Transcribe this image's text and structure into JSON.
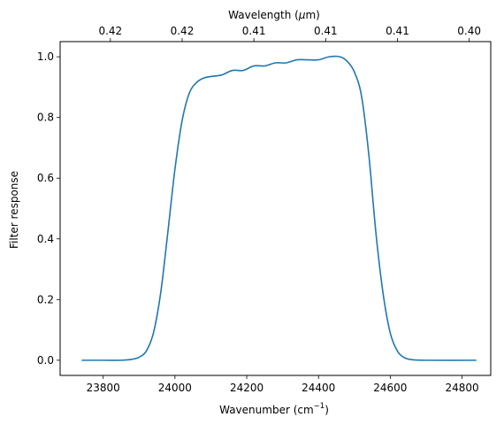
{
  "chart_data": {
    "type": "line",
    "xlabel": "Wavenumber (cm",
    "xlabel_sup": "−1",
    "xlabel_end": ")",
    "ylabel": "Filter response",
    "top_xlabel": "Wavelength (",
    "top_xlabel_mu": "μ",
    "top_xlabel_end": "m)",
    "xlim": [
      23680,
      24880
    ],
    "ylim": [
      -0.05,
      1.05
    ],
    "x_ticks": [
      23800,
      24000,
      24200,
      24400,
      24600,
      24800
    ],
    "x_tick_labels": [
      "23800",
      "24000",
      "24200",
      "24400",
      "24600",
      "24800"
    ],
    "y_ticks": [
      0.0,
      0.2,
      0.4,
      0.6,
      0.8,
      1.0
    ],
    "y_tick_labels": [
      "0.0",
      "0.2",
      "0.4",
      "0.6",
      "0.8",
      "1.0"
    ],
    "top_ticks": [
      23820,
      24020,
      24220,
      24420,
      24620,
      24820
    ],
    "top_tick_labels": [
      "0.42",
      "0.42",
      "0.41",
      "0.41",
      "0.41",
      "0.40"
    ],
    "color": "#1f77b4",
    "grid": false,
    "series": [
      {
        "x": [
          23740,
          23800,
          23850,
          23880,
          23900,
          23920,
          23940,
          23960,
          23980,
          24000,
          24020,
          24040,
          24060,
          24080,
          24100,
          24130,
          24160,
          24190,
          24220,
          24250,
          24280,
          24310,
          24340,
          24370,
          24400,
          24430,
          24460,
          24480,
          24500,
          24520,
          24540,
          24560,
          24580,
          24600,
          24620,
          24640,
          24660,
          24700,
          24840
        ],
        "y": [
          0.0,
          0.0,
          0.0,
          0.003,
          0.01,
          0.03,
          0.09,
          0.22,
          0.42,
          0.63,
          0.79,
          0.88,
          0.915,
          0.93,
          0.935,
          0.94,
          0.955,
          0.955,
          0.97,
          0.97,
          0.98,
          0.98,
          0.99,
          0.99,
          0.99,
          1.0,
          1.0,
          0.985,
          0.95,
          0.87,
          0.68,
          0.42,
          0.22,
          0.09,
          0.03,
          0.008,
          0.002,
          0.0,
          0.0
        ]
      }
    ]
  }
}
